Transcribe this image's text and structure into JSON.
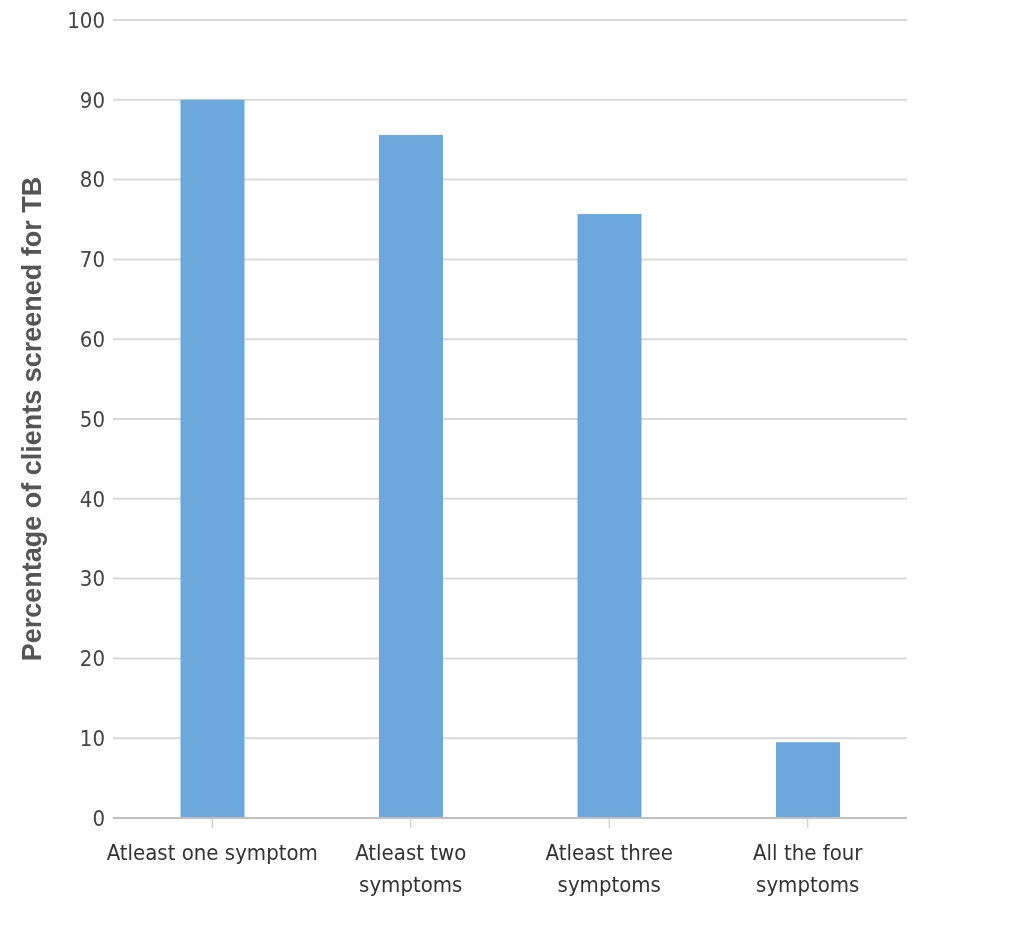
{
  "chart_data": {
    "type": "bar",
    "ylabel": "Percentage of clients screened for TB",
    "categories": [
      "Atleast one symptom",
      "Atleast two symptoms",
      "Atleast three symptoms",
      "All the four symptoms"
    ],
    "values": [
      90,
      85.6,
      75.7,
      9.5
    ],
    "color": "#6ca8db",
    "ylim": [
      0,
      100
    ],
    "yticks": [
      0,
      10,
      20,
      30,
      40,
      50,
      60,
      70,
      80,
      90,
      100
    ],
    "grid": "y"
  }
}
